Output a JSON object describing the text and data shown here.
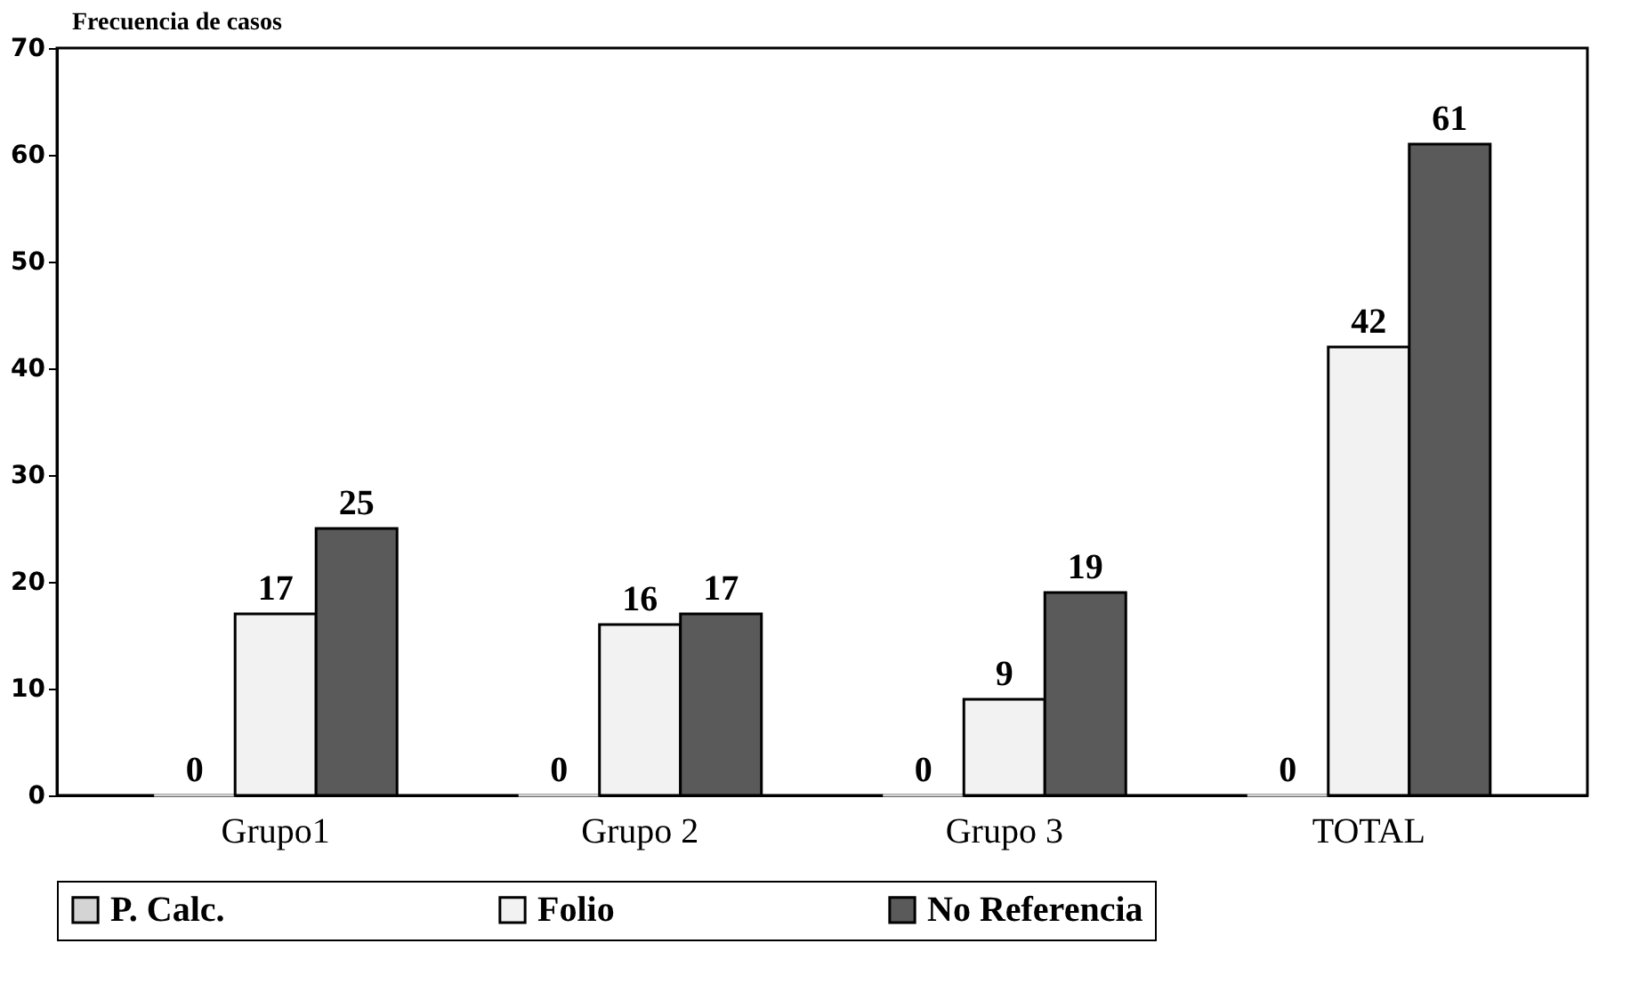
{
  "chart_data": {
    "type": "bar",
    "ylabel": "Frecuencia de casos",
    "categories": [
      "Grupo1",
      "Grupo 2",
      "Grupo 3",
      "TOTAL"
    ],
    "series": [
      {
        "name": "P. Calc.",
        "color": "#d4d4d4",
        "values": [
          0,
          0,
          0,
          0
        ]
      },
      {
        "name": "Folio",
        "color": "#f2f2f2",
        "values": [
          17,
          16,
          9,
          42
        ]
      },
      {
        "name": "No Referencia",
        "color": "#5a5a5a",
        "values": [
          25,
          17,
          19,
          61
        ]
      }
    ],
    "ylim": [
      0,
      70
    ],
    "yticks": [
      0,
      10,
      20,
      30,
      40,
      50,
      60,
      70
    ],
    "grid": false,
    "legend": "bottom",
    "data_labels": true
  }
}
